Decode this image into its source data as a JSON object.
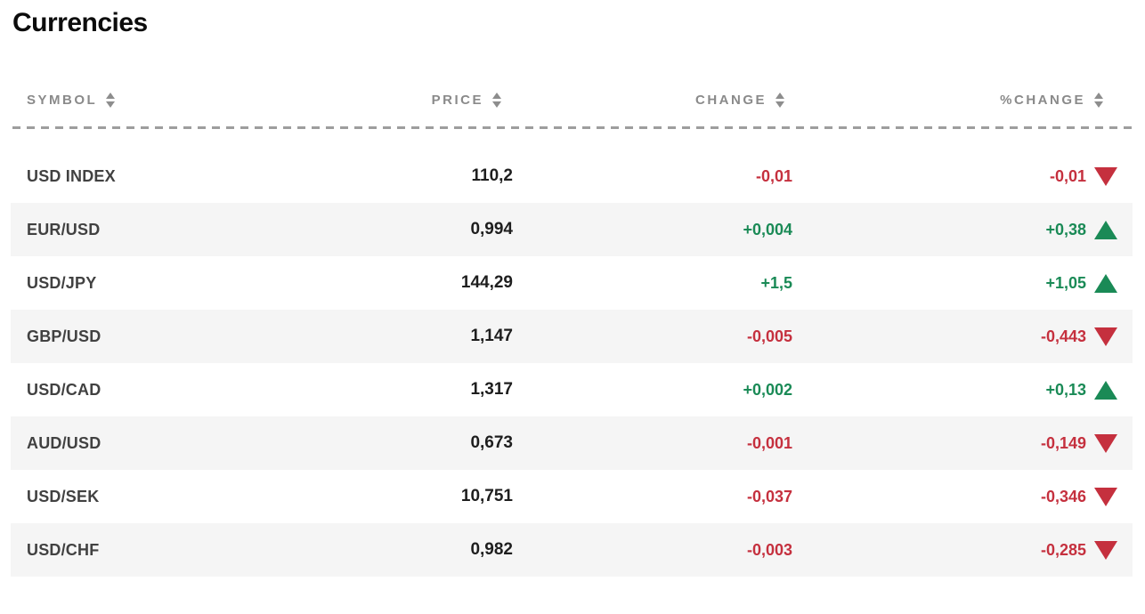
{
  "page": {
    "title": "Currencies"
  },
  "colors": {
    "positive": "#1a8a56",
    "negative": "#c5303e",
    "row_stripe": "#f5f5f5",
    "header_text": "#8a8a8a",
    "title_text": "#0c0c0c"
  },
  "icons": {
    "sort": "sort-arrows-icon",
    "up": "triangle-up-icon",
    "down": "triangle-down-icon"
  },
  "table": {
    "columns": [
      {
        "key": "symbol",
        "label": "SYMBOL"
      },
      {
        "key": "price",
        "label": "PRICE"
      },
      {
        "key": "change",
        "label": "CHANGE"
      },
      {
        "key": "pchange",
        "label": "%CHANGE"
      }
    ],
    "rows": [
      {
        "symbol": "USD INDEX",
        "price": "110,2",
        "change": "-0,01",
        "change_dir": "down",
        "pchange": "-0,01",
        "pchange_dir": "down"
      },
      {
        "symbol": "EUR/USD",
        "price": "0,994",
        "change": "+0,004",
        "change_dir": "up",
        "pchange": "+0,38",
        "pchange_dir": "up"
      },
      {
        "symbol": "USD/JPY",
        "price": "144,29",
        "change": "+1,5",
        "change_dir": "up",
        "pchange": "+1,05",
        "pchange_dir": "up"
      },
      {
        "symbol": "GBP/USD",
        "price": "1,147",
        "change": "-0,005",
        "change_dir": "down",
        "pchange": "-0,443",
        "pchange_dir": "down"
      },
      {
        "symbol": "USD/CAD",
        "price": "1,317",
        "change": "+0,002",
        "change_dir": "up",
        "pchange": "+0,13",
        "pchange_dir": "up"
      },
      {
        "symbol": "AUD/USD",
        "price": "0,673",
        "change": "-0,001",
        "change_dir": "down",
        "pchange": "-0,149",
        "pchange_dir": "down"
      },
      {
        "symbol": "USD/SEK",
        "price": "10,751",
        "change": "-0,037",
        "change_dir": "down",
        "pchange": "-0,346",
        "pchange_dir": "down"
      },
      {
        "symbol": "USD/CHF",
        "price": "0,982",
        "change": "-0,003",
        "change_dir": "down",
        "pchange": "-0,285",
        "pchange_dir": "down"
      }
    ]
  }
}
